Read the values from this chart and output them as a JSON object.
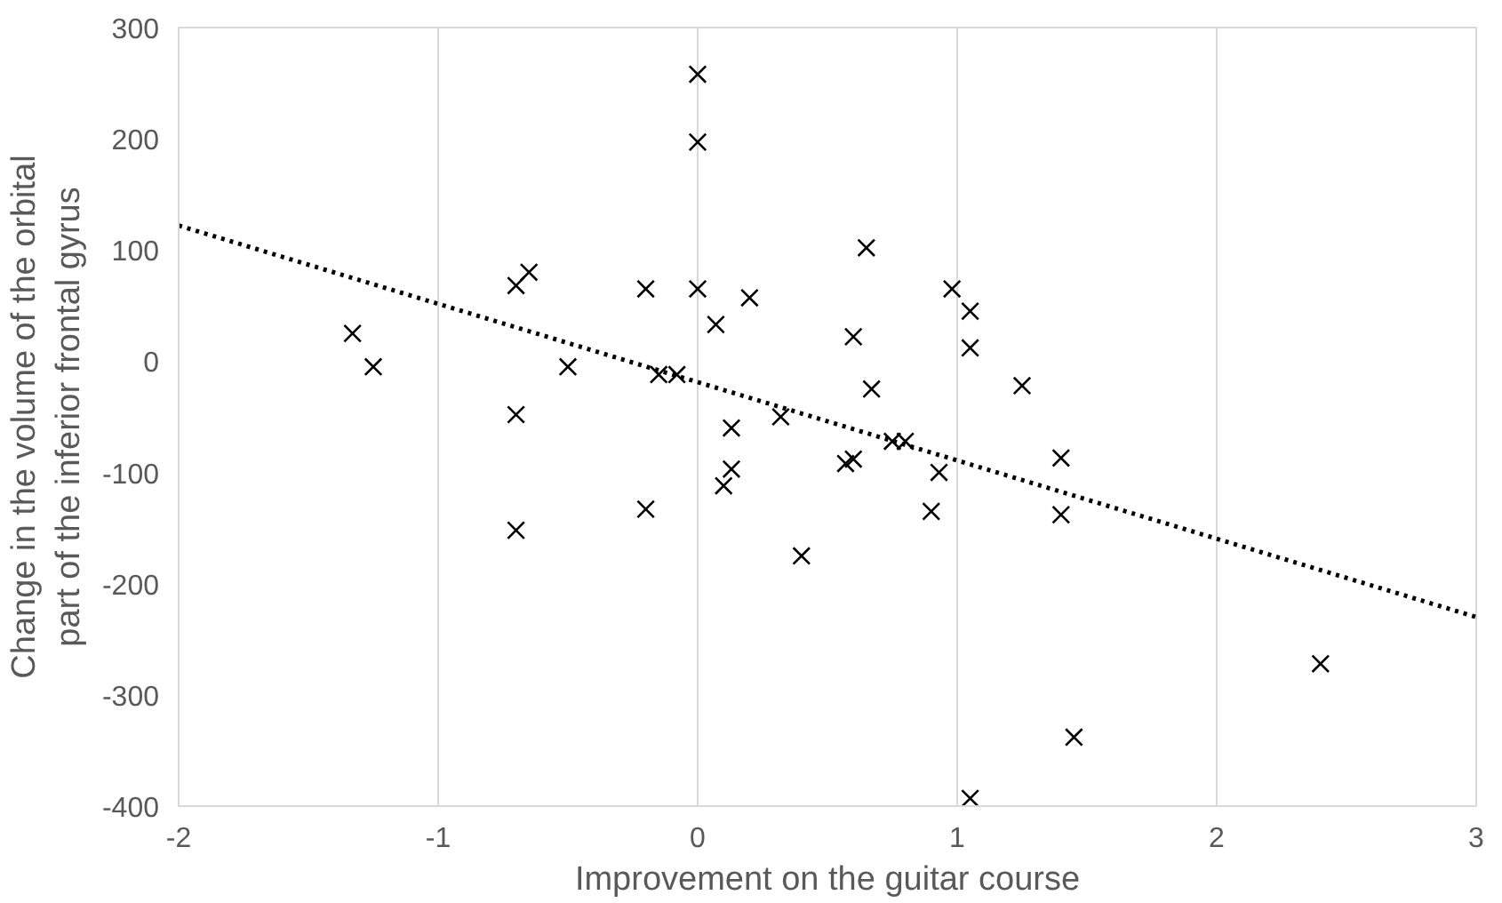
{
  "chart_data": {
    "type": "scatter",
    "xlabel": "Improvement on the guitar course",
    "ylabel": "Change in the volume of the orbital\npart of the inferior frontal gyrus",
    "xlim": [
      -2,
      3
    ],
    "ylim": [
      -400,
      300
    ],
    "xticks": [
      -2,
      -1,
      0,
      1,
      2,
      3
    ],
    "yticks": [
      -400,
      -300,
      -200,
      -100,
      0,
      100,
      200,
      300
    ],
    "grid": "x",
    "series": [
      {
        "color": "#000000",
        "marker": "cross",
        "x": [
          -1.33,
          -1.25,
          -0.7,
          -0.65,
          -0.7,
          -0.7,
          -0.5,
          -0.2,
          -0.2,
          -0.15,
          -0.08,
          0,
          0,
          0,
          0.07,
          0.2,
          0.1,
          0.13,
          0.13,
          0.32,
          0.4,
          0.6,
          0.57,
          0.6,
          0.65,
          0.67,
          0.75,
          0.8,
          0.9,
          0.93,
          0.98,
          1.05,
          1.05,
          1.25,
          1.4,
          1.4,
          1.45,
          1.05,
          2.4
        ],
        "values": [
          25,
          -5,
          68,
          80,
          -48,
          -152,
          -5,
          65,
          -133,
          -12,
          -12,
          258,
          197,
          65,
          33,
          57,
          -112,
          -60,
          -97,
          -50,
          -175,
          22,
          -92,
          -88,
          102,
          -25,
          -72,
          -72,
          -135,
          -100,
          65,
          45,
          12,
          -22,
          -87,
          -138,
          -338,
          -393,
          -272
        ]
      },
      {
        "type": "line",
        "color": "#000000",
        "marker": "none",
        "line_style": "dotted",
        "x": [
          -2,
          3
        ],
        "values": [
          122,
          -230
        ]
      }
    ]
  }
}
